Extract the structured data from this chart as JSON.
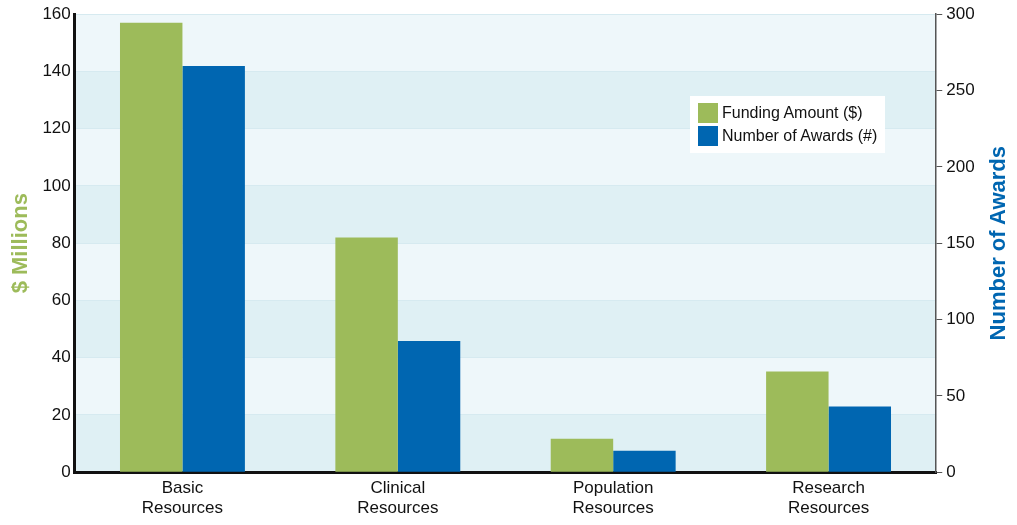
{
  "chart_data": {
    "type": "bar",
    "categories": [
      "Basic Resources",
      "Clinical Resources",
      "Population Resources",
      "Research Resources"
    ],
    "series": [
      {
        "name": "Funding Amount ($)",
        "color": "#9dbb5a",
        "values": [
          157,
          82,
          11.7,
          35.2
        ]
      },
      {
        "name": "Number of Awards (#)",
        "color": "#0066b1",
        "axis": "y2",
        "values": [
          266,
          86,
          14,
          43
        ]
      }
    ],
    "ylabel": "$ Millions",
    "y2label": "Number of Awards",
    "ylim": [
      0,
      160
    ],
    "yticks": [
      0,
      20,
      40,
      60,
      80,
      100,
      120,
      140,
      160
    ],
    "y2lim": [
      0,
      300
    ],
    "y2ticks": [
      0,
      50,
      100,
      150,
      200,
      250,
      300
    ],
    "grid": "y",
    "legend": "top right"
  }
}
